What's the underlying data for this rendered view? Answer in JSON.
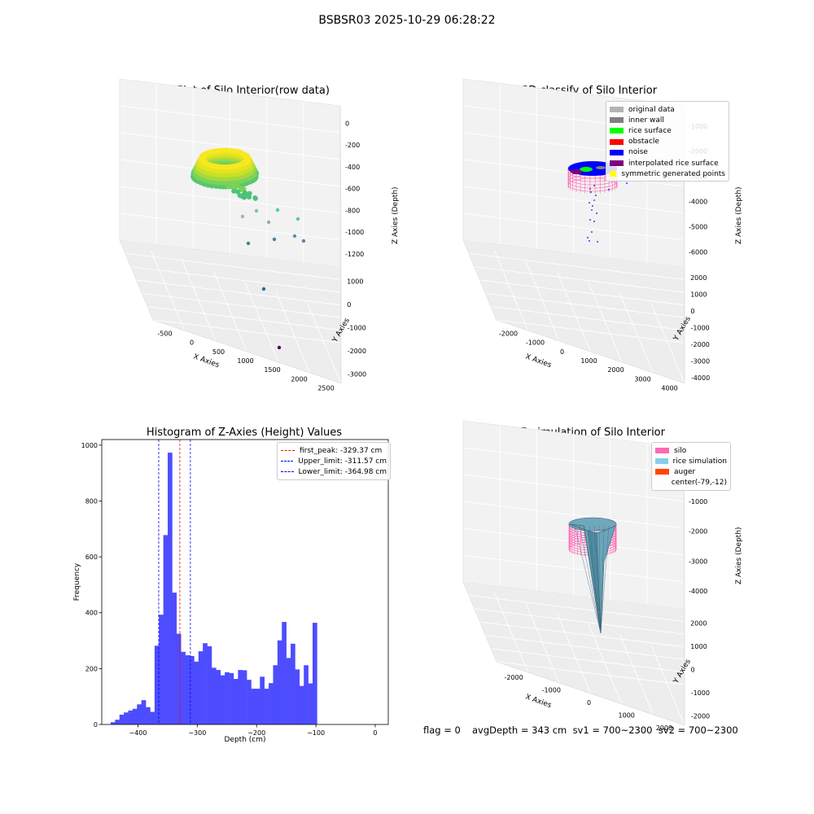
{
  "suptitle": "BSBSR03 2025-10-29 06:28:22",
  "footer": {
    "flag": "flag = 0",
    "stats": "avgDepth = 343 cm  sv1 = 700~2300  sv2 = 700~2300"
  },
  "chart_data": [
    {
      "type": "scatter",
      "dims": 3,
      "title": "3D Plot of Silo Interior(row data)",
      "xlabel": "X Axies",
      "ylabel": "Y Axies",
      "zlabel": "Z Axies (Depth)",
      "x_ticks": [
        "-500",
        "0",
        "500",
        "1000",
        "1500",
        "2000",
        "2500"
      ],
      "y_ticks": [
        "-3000",
        "-2000",
        "-1000",
        "0",
        "1000"
      ],
      "z_ticks": [
        "0",
        "-200",
        "-400",
        "-600",
        "-800",
        "-1000",
        "-1200"
      ],
      "outlier_points": [
        {
          "x": 600,
          "y": -500,
          "z": -650,
          "color": "#a6b0b8"
        },
        {
          "x": 800,
          "y": -300,
          "z": -600,
          "color": "#7fbfb0"
        },
        {
          "x": 1100,
          "y": 200,
          "z": -580,
          "color": "#5cc8a0"
        },
        {
          "x": 1000,
          "y": -400,
          "z": -750,
          "color": "#9aa6b8"
        },
        {
          "x": 1500,
          "y": 600,
          "z": -650,
          "color": "#60c496"
        },
        {
          "x": 700,
          "y": -600,
          "z": -950,
          "color": "#2e8f8c"
        },
        {
          "x": 1100,
          "y": -200,
          "z": -920,
          "color": "#4f7f9c"
        },
        {
          "x": 1500,
          "y": 300,
          "z": -880,
          "color": "#5d8fa8"
        },
        {
          "x": 1700,
          "y": 500,
          "z": -920,
          "color": "#6282a6"
        },
        {
          "x": 1500,
          "y": -800,
          "z": -1400,
          "color": "#2a6b85"
        },
        {
          "x": 2300,
          "y": -1200,
          "z": -2000,
          "color": "#4a0a4e"
        }
      ]
    },
    {
      "type": "scatter",
      "dims": 3,
      "title": "3D classify of Silo Interior",
      "xlabel": "X Axies",
      "ylabel": "Y Axies",
      "zlabel": "Z Axies (Depth)",
      "x_ticks": [
        "-2000",
        "-1000",
        "0",
        "1000",
        "2000",
        "3000",
        "4000"
      ],
      "y_ticks": [
        "-4000",
        "-3000",
        "-2000",
        "-1000",
        "0",
        "1000",
        "2000"
      ],
      "z_ticks": [
        "-1000",
        "-2000",
        "-3000",
        "-4000",
        "-5000",
        "-6000"
      ],
      "legend": [
        {
          "label": "original data",
          "color": "#b3b3b3"
        },
        {
          "label": "inner wall",
          "color": "#808080"
        },
        {
          "label": "rice surface",
          "color": "#00ff00"
        },
        {
          "label": "obstacle",
          "color": "#ff0000"
        },
        {
          "label": "noise",
          "color": "#0000ff"
        },
        {
          "label": "interpolated rice surface",
          "color": "#800080"
        },
        {
          "label": "symmetric generated points",
          "color": "#ffff00"
        }
      ]
    },
    {
      "type": "bar",
      "title": "Histogram of Z-Axies (Height) Values",
      "xlabel": "Depth (cm)",
      "ylabel": "Frequency",
      "bar_color": "#4d4dff",
      "bin_start": -446,
      "bin_width": 7.4,
      "values": [
        8,
        17,
        35,
        43,
        50,
        56,
        72,
        87,
        62,
        45,
        282,
        393,
        678,
        973,
        472,
        325,
        260,
        248,
        245,
        225,
        262,
        291,
        280,
        203,
        195,
        176,
        187,
        184,
        163,
        195,
        194,
        160,
        128,
        128,
        171,
        128,
        148,
        212,
        301,
        367,
        238,
        289,
        197,
        138,
        212,
        147,
        364
      ],
      "xlim": [
        -461,
        22
      ],
      "ylim": [
        0,
        1020
      ],
      "x_ticks": [
        -400,
        -300,
        -200,
        -100,
        0
      ],
      "y_ticks": [
        0,
        200,
        400,
        600,
        800,
        1000
      ],
      "vlines": [
        {
          "label": "first_peak: -329.37 cm",
          "x": -329.37,
          "color": "#ff0000"
        },
        {
          "label": "Upper_limit: -311.57 cm",
          "x": -311.57,
          "color": "#0000ff"
        },
        {
          "label": "Lower_limit: -364.98 cm",
          "x": -364.98,
          "color": "#0000ff"
        }
      ],
      "legend_position": "upper right"
    },
    {
      "type": "surface",
      "dims": 3,
      "title": "3D simulation of Silo Interior",
      "xlabel": "X Axies",
      "ylabel": "Y Axies",
      "zlabel": "Z Axies (Depth)",
      "x_ticks": [
        "-2000",
        "-1000",
        "0",
        "1000",
        "2000"
      ],
      "y_ticks": [
        "-2000",
        "-1000",
        "0",
        "1000",
        "2000"
      ],
      "z_ticks": [
        "0",
        "-1000",
        "-2000",
        "-3000",
        "-4000"
      ],
      "legend": [
        {
          "label": "silo",
          "color": "#ff69b4"
        },
        {
          "label": "rice simulation",
          "color": "#87ceeb"
        },
        {
          "label": "auger",
          "color": "#ff4500"
        },
        {
          "label": "center(-79,-12)",
          "color": ""
        }
      ]
    }
  ]
}
